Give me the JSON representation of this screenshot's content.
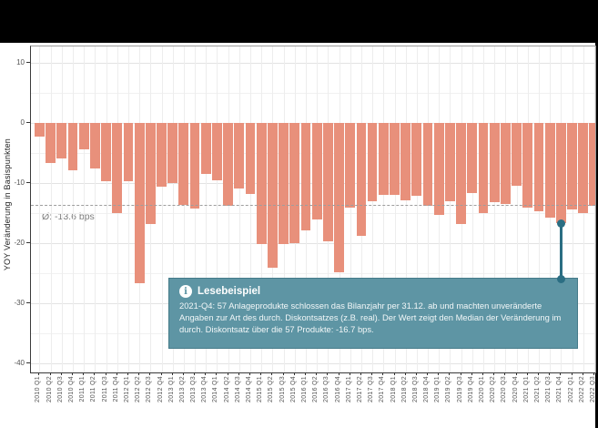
{
  "chart": {
    "y_ticks": [
      10,
      0,
      -10,
      -20,
      -30,
      -40
    ],
    "mean_label": "Ø: -13.6 bps",
    "mean_value": -13.6
  },
  "chart_data": {
    "type": "bar",
    "title": "",
    "xlabel": "",
    "ylabel": "YOY Veränderung in Basispunkten",
    "ylim": [
      -41.5,
      12.8
    ],
    "grid": true,
    "legend": "none",
    "categories": [
      "2010 Q1",
      "2010 Q2",
      "2010 Q3",
      "2010 Q4",
      "2011 Q1",
      "2011 Q2",
      "2011 Q3",
      "2011 Q4",
      "2012 Q1",
      "2012 Q2",
      "2012 Q3",
      "2012 Q4",
      "2013 Q1",
      "2013 Q2",
      "2013 Q3",
      "2013 Q4",
      "2014 Q1",
      "2014 Q2",
      "2014 Q3",
      "2014 Q4",
      "2015 Q1",
      "2015 Q2",
      "2015 Q3",
      "2015 Q4",
      "2016 Q1",
      "2016 Q2",
      "2016 Q3",
      "2016 Q4",
      "2017 Q1",
      "2017 Q2",
      "2017 Q3",
      "2017 Q4",
      "2018 Q1",
      "2018 Q2",
      "2018 Q3",
      "2018 Q4",
      "2019 Q1",
      "2019 Q2",
      "2019 Q3",
      "2019 Q4",
      "2020 Q1",
      "2020 Q2",
      "2020 Q3",
      "2020 Q4",
      "2021 Q1",
      "2021 Q2",
      "2021 Q3",
      "2021 Q4",
      "2022 Q1",
      "2022 Q2",
      "2022 Q3"
    ],
    "values": [
      -2.3,
      -6.7,
      -5.8,
      -7.8,
      -4.3,
      -7.6,
      -9.7,
      -15.0,
      -9.7,
      -26.6,
      -16.8,
      -10.5,
      -10.0,
      -13.6,
      -14.2,
      -8.5,
      -9.5,
      -13.7,
      -10.8,
      -11.8,
      -20.1,
      -24.1,
      -20.1,
      -20.0,
      -17.9,
      -16.0,
      -19.7,
      -24.8,
      -14.0,
      -18.8,
      -13.0,
      -11.9,
      -11.9,
      -12.8,
      -12.1,
      -13.7,
      -15.3,
      -13.0,
      -16.8,
      -11.7,
      -15.0,
      -13.2,
      -13.4,
      -10.4,
      -14.0,
      -14.7,
      -15.7,
      -16.7,
      -14.3,
      -15.0,
      -13.7
    ],
    "mean_line": -13.6
  },
  "annotation": {
    "title": "Lesebeispiel",
    "body": "2021-Q4: 57 Anlageprodukte schlossen das Bilanzjahr per 31.12. ab und machten unveränderte Angaben zur Art des durch. Diskontsatzes (z.B. real). Der Wert zeigt den Median der Veränderung im durch. Diskontsatz über die 57 Produkte: -16.7 bps.",
    "highlight_category": "2021 Q4",
    "highlight_value": -16.7
  },
  "colors": {
    "bar": "#E8907B",
    "tooltip_bg": "#5E95A4",
    "tooltip_text": "#FFFFFF",
    "connector": "#2B6E83",
    "mean_line": "#9E9E9E",
    "header_bar": "#000000"
  }
}
